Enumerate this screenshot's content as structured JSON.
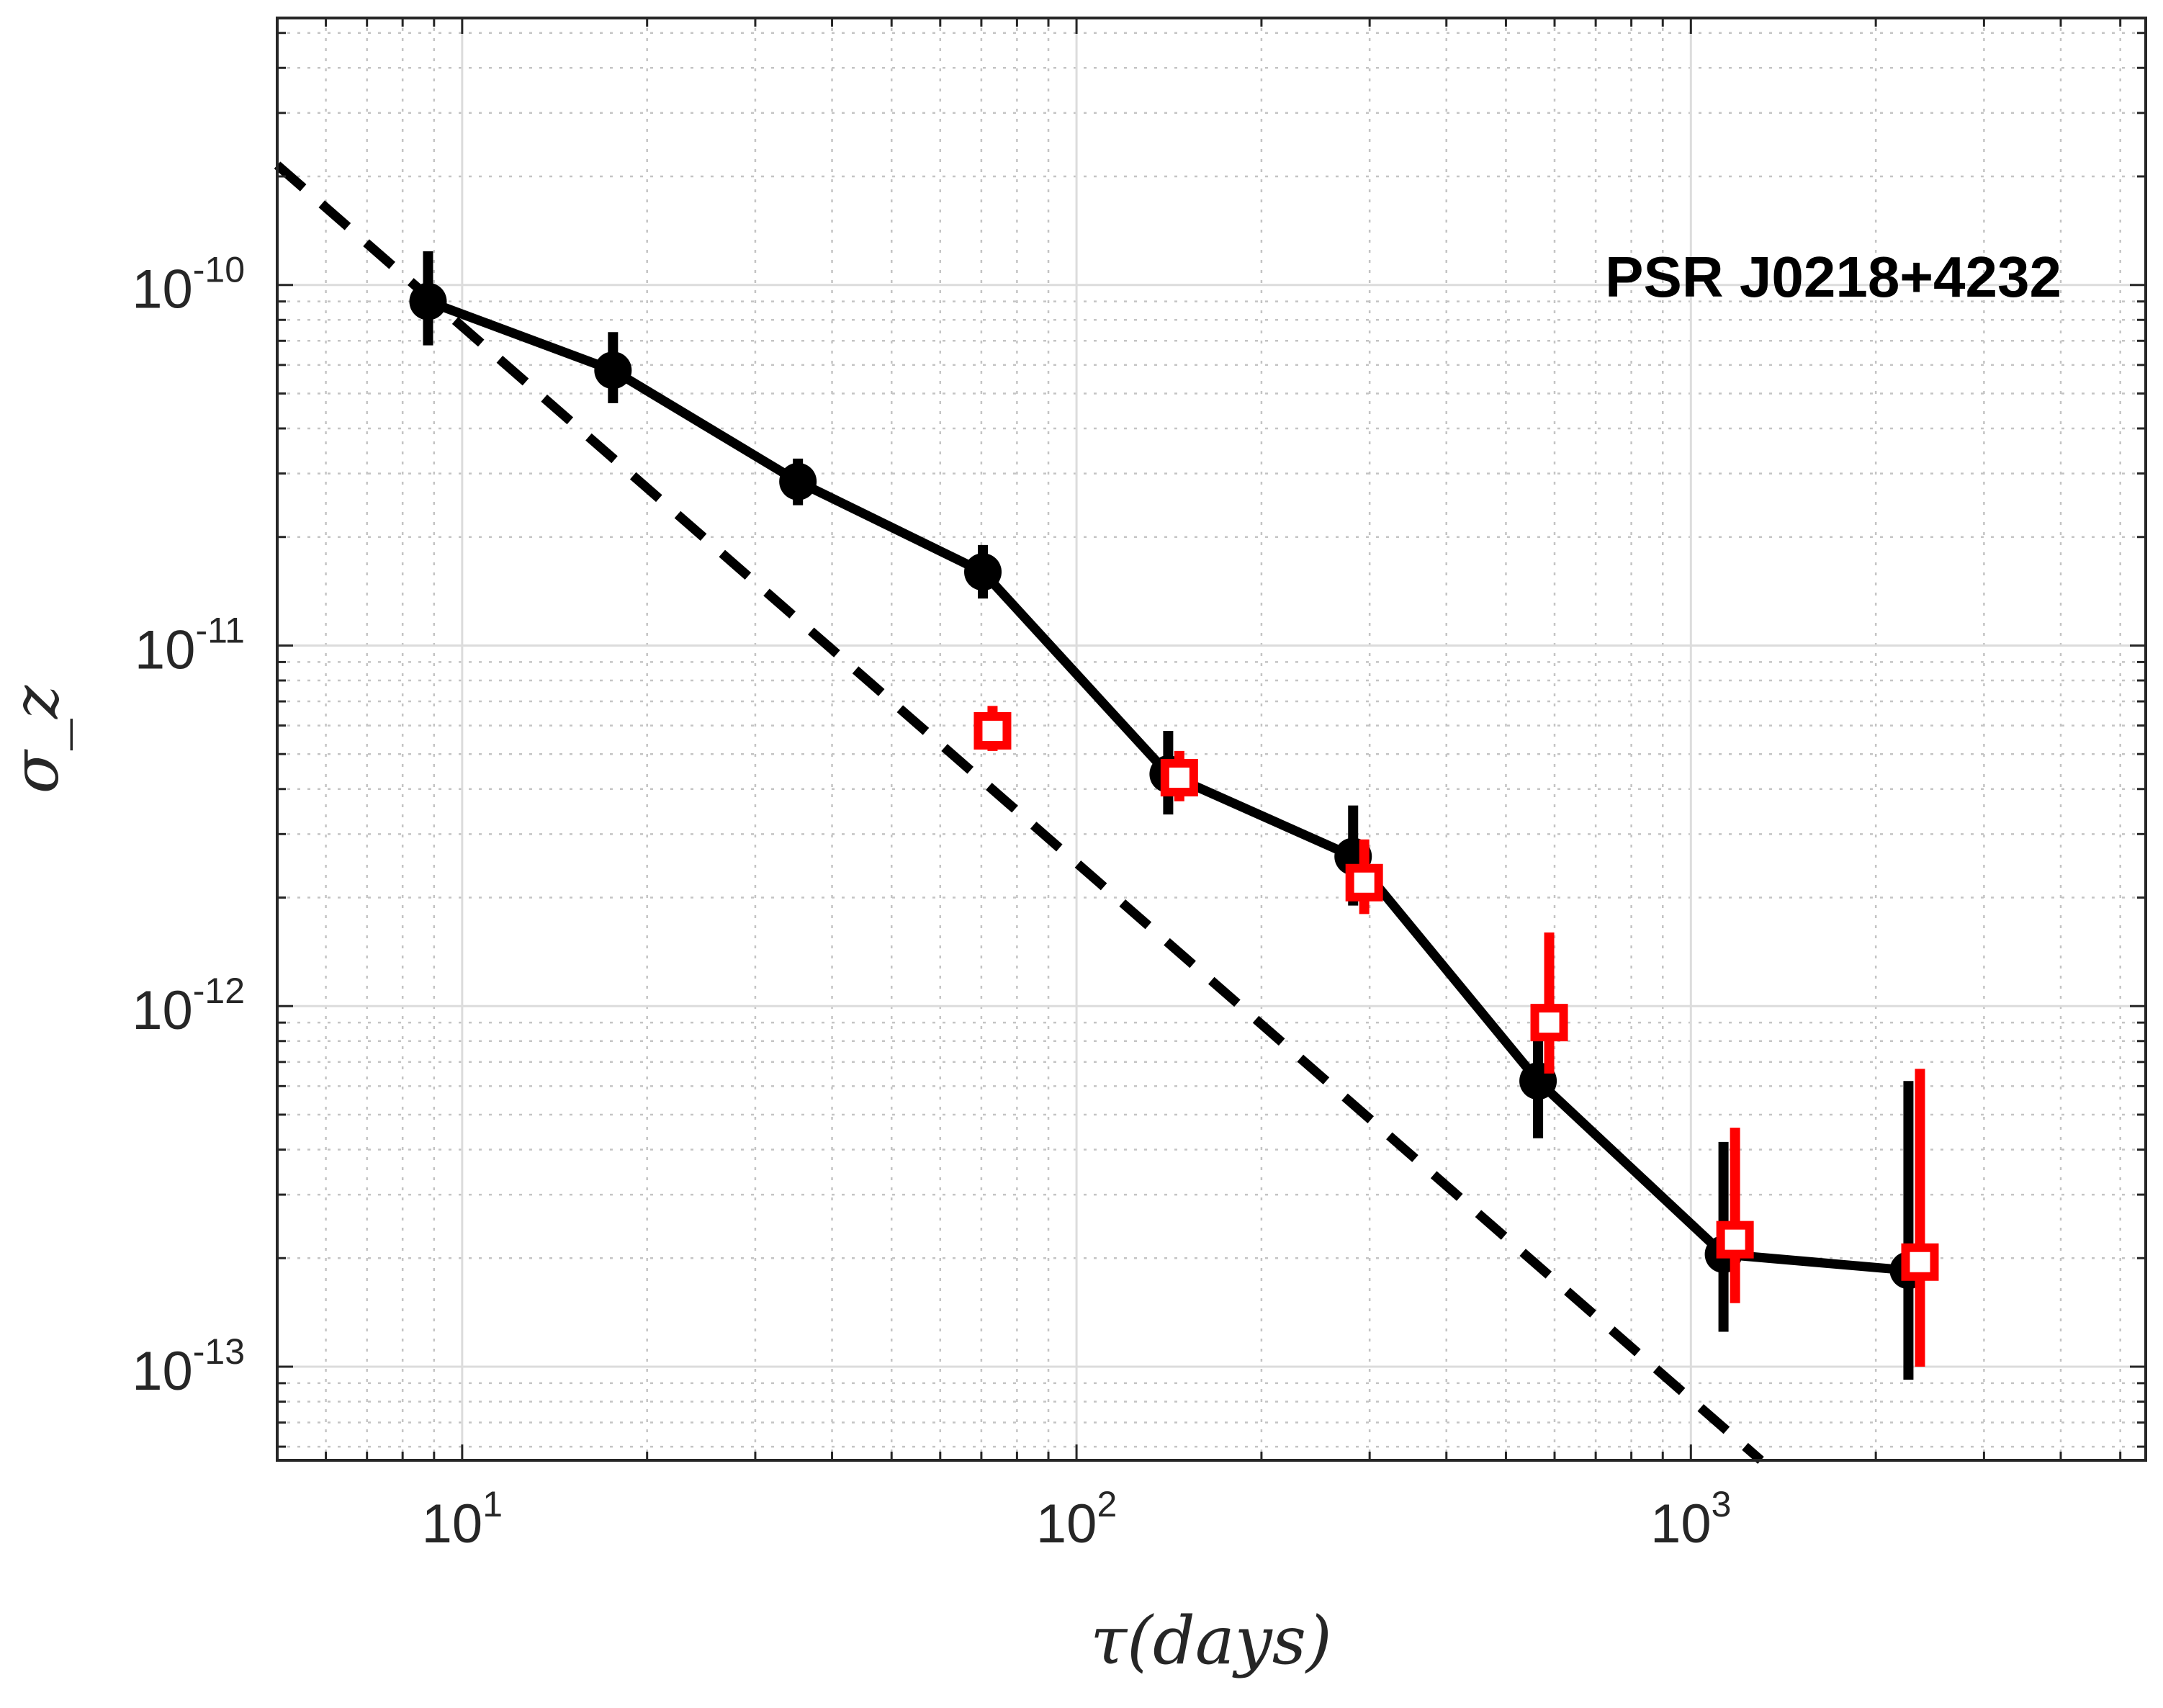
{
  "chart_data": {
    "type": "scatter",
    "title": "",
    "xlabel": "τ(days)",
    "ylabel": "σ_z",
    "xscale": "log",
    "yscale": "log",
    "xlim": [
      5,
      5500
    ],
    "ylim": [
      5.5e-14,
      5.5e-10
    ],
    "grid": true,
    "x_ticks": [
      {
        "value": 10,
        "base": "10",
        "exp": "1"
      },
      {
        "value": 100,
        "base": "10",
        "exp": "2"
      },
      {
        "value": 1000,
        "base": "10",
        "exp": "3"
      }
    ],
    "y_ticks": [
      {
        "value": 1e-10,
        "base": "10",
        "exp": "-10"
      },
      {
        "value": 1e-11,
        "base": "10",
        "exp": "-11"
      },
      {
        "value": 1e-12,
        "base": "10",
        "exp": "-12"
      },
      {
        "value": 1e-13,
        "base": "10",
        "exp": "-13"
      }
    ],
    "annotation": "PSR J0218+4232",
    "series": [
      {
        "name": "black circles (connected)",
        "color": "#000000",
        "marker": "circle",
        "connected": true,
        "points": [
          {
            "x": 8.8,
            "y": 9e-11,
            "lo": 6.8e-11,
            "hi": 1.24e-10
          },
          {
            "x": 17.6,
            "y": 5.8e-11,
            "lo": 4.7e-11,
            "hi": 7.4e-11
          },
          {
            "x": 35.2,
            "y": 2.85e-11,
            "lo": 2.45e-11,
            "hi": 3.3e-11
          },
          {
            "x": 70.4,
            "y": 1.6e-11,
            "lo": 1.35e-11,
            "hi": 1.9e-11
          },
          {
            "x": 141,
            "y": 4.4e-12,
            "lo": 3.4e-12,
            "hi": 5.8e-12
          },
          {
            "x": 282,
            "y": 2.6e-12,
            "lo": 1.9e-12,
            "hi": 3.6e-12
          },
          {
            "x": 564,
            "y": 6.2e-13,
            "lo": 4.3e-13,
            "hi": 8.5e-13
          },
          {
            "x": 1130,
            "y": 2.05e-13,
            "lo": 1.25e-13,
            "hi": 4.2e-13
          },
          {
            "x": 2260,
            "y": 1.85e-13,
            "lo": 9.2e-14,
            "hi": 6.2e-13
          }
        ]
      },
      {
        "name": "red squares",
        "color": "#ff0000",
        "marker": "square",
        "connected": false,
        "points": [
          {
            "x": 73,
            "y": 5.8e-12,
            "lo": 5.1e-12,
            "hi": 6.8e-12
          },
          {
            "x": 147,
            "y": 4.3e-12,
            "lo": 3.7e-12,
            "hi": 5.1e-12
          },
          {
            "x": 294,
            "y": 2.2e-12,
            "lo": 1.8e-12,
            "hi": 2.9e-12
          },
          {
            "x": 588,
            "y": 9e-13,
            "lo": 6.5e-13,
            "hi": 1.6e-12
          },
          {
            "x": 1180,
            "y": 2.25e-13,
            "lo": 1.5e-13,
            "hi": 4.6e-13
          },
          {
            "x": 2360,
            "y": 1.95e-13,
            "lo": 1e-13,
            "hi": 6.7e-13
          }
        ]
      }
    ],
    "reference_line": {
      "name": "dashed slope line",
      "style": "dashed",
      "color": "#000000",
      "from": {
        "x": 5,
        "y": 2.15e-10
      },
      "to": {
        "x": 1300,
        "y": 5.5e-14
      }
    }
  }
}
